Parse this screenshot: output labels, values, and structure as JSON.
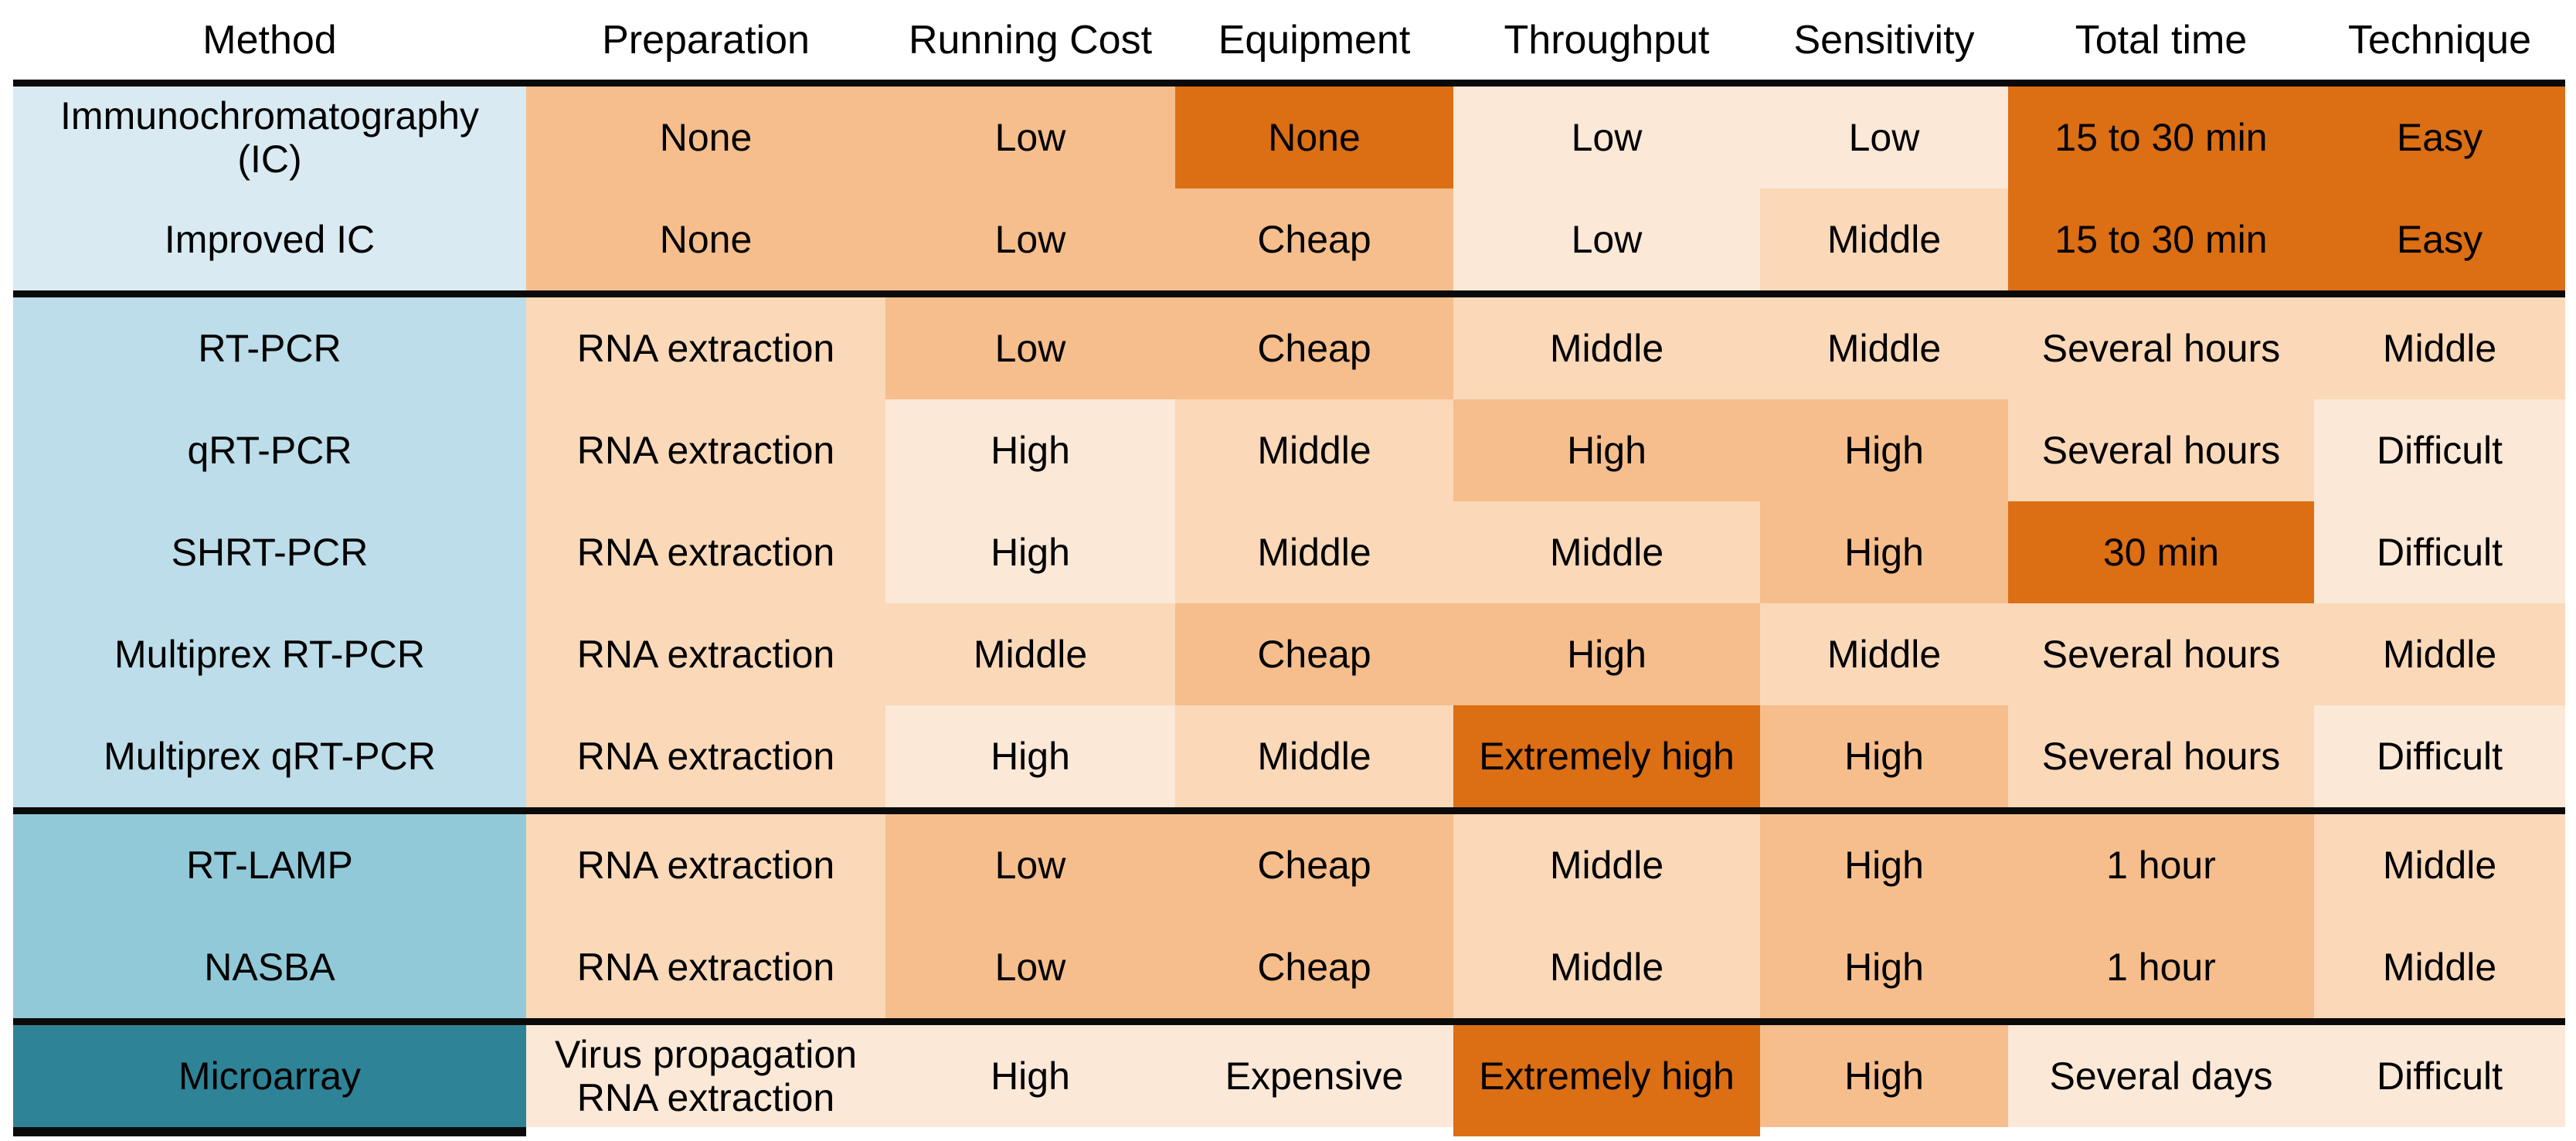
{
  "chart_data": {
    "type": "table",
    "columns": [
      "Method",
      "Preparation",
      "Running Cost",
      "Equipment",
      "Throughput",
      "Sensitivity",
      "Total time",
      "Technique"
    ],
    "palette": {
      "dark": "#DC6E14",
      "medium": "#F6BE8C",
      "peach": "#FAD8B8",
      "cream": "#FBE8D7",
      "blue_lightest": "#D9EAF2",
      "blue_light": "#BCDDE9",
      "blue_medium": "#92C9D9",
      "teal": "#2F8397",
      "rule": "#0A0A0A"
    },
    "groups": [
      {
        "method_color": "blue_lightest",
        "rows": [
          {
            "method_lines": [
              "Immunochromatography",
              "(IC)"
            ],
            "cells": [
              {
                "text": "None",
                "color": "medium"
              },
              {
                "text": "Low",
                "color": "medium"
              },
              {
                "text": "None",
                "color": "dark"
              },
              {
                "text": "Low",
                "color": "cream"
              },
              {
                "text": "Low",
                "color": "cream"
              },
              {
                "text": "15 to 30 min",
                "color": "dark"
              },
              {
                "text": "Easy",
                "color": "dark"
              }
            ]
          },
          {
            "method_lines": [
              "Improved IC"
            ],
            "cells": [
              {
                "text": "None",
                "color": "medium"
              },
              {
                "text": "Low",
                "color": "medium"
              },
              {
                "text": "Cheap",
                "color": "medium"
              },
              {
                "text": "Low",
                "color": "cream"
              },
              {
                "text": "Middle",
                "color": "peach"
              },
              {
                "text": "15 to 30 min",
                "color": "dark"
              },
              {
                "text": "Easy",
                "color": "dark"
              }
            ]
          }
        ]
      },
      {
        "method_color": "blue_light",
        "rows": [
          {
            "method_lines": [
              "RT-PCR"
            ],
            "cells": [
              {
                "text": "RNA extraction",
                "color": "peach"
              },
              {
                "text": "Low",
                "color": "medium"
              },
              {
                "text": "Cheap",
                "color": "medium"
              },
              {
                "text": "Middle",
                "color": "peach"
              },
              {
                "text": "Middle",
                "color": "peach"
              },
              {
                "text": "Several hours",
                "color": "peach"
              },
              {
                "text": "Middle",
                "color": "peach"
              }
            ]
          },
          {
            "method_lines": [
              "qRT-PCR"
            ],
            "cells": [
              {
                "text": "RNA extraction",
                "color": "peach"
              },
              {
                "text": "High",
                "color": "cream"
              },
              {
                "text": "Middle",
                "color": "peach"
              },
              {
                "text": "High",
                "color": "medium"
              },
              {
                "text": "High",
                "color": "medium"
              },
              {
                "text": "Several hours",
                "color": "peach"
              },
              {
                "text": "Difficult",
                "color": "cream"
              }
            ]
          },
          {
            "method_lines": [
              "SHRT-PCR"
            ],
            "cells": [
              {
                "text": "RNA extraction",
                "color": "peach"
              },
              {
                "text": "High",
                "color": "cream"
              },
              {
                "text": "Middle",
                "color": "peach"
              },
              {
                "text": "Middle",
                "color": "peach"
              },
              {
                "text": "High",
                "color": "medium"
              },
              {
                "text": "30 min",
                "color": "dark"
              },
              {
                "text": "Difficult",
                "color": "cream"
              }
            ]
          },
          {
            "method_lines": [
              "Multiprex RT-PCR"
            ],
            "cells": [
              {
                "text": "RNA extraction",
                "color": "peach"
              },
              {
                "text": "Middle",
                "color": "peach"
              },
              {
                "text": "Cheap",
                "color": "medium"
              },
              {
                "text": "High",
                "color": "medium"
              },
              {
                "text": "Middle",
                "color": "peach"
              },
              {
                "text": "Several hours",
                "color": "peach"
              },
              {
                "text": "Middle",
                "color": "peach"
              }
            ]
          },
          {
            "method_lines": [
              "Multiprex qRT-PCR"
            ],
            "cells": [
              {
                "text": "RNA extraction",
                "color": "peach"
              },
              {
                "text": "High",
                "color": "cream"
              },
              {
                "text": "Middle",
                "color": "peach"
              },
              {
                "text": "Extremely high",
                "color": "dark"
              },
              {
                "text": "High",
                "color": "medium"
              },
              {
                "text": "Several hours",
                "color": "peach"
              },
              {
                "text": "Difficult",
                "color": "cream"
              }
            ]
          }
        ]
      },
      {
        "method_color": "blue_medium",
        "rows": [
          {
            "method_lines": [
              "RT-LAMP"
            ],
            "cells": [
              {
                "text": "RNA extraction",
                "color": "peach"
              },
              {
                "text": "Low",
                "color": "medium"
              },
              {
                "text": "Cheap",
                "color": "medium"
              },
              {
                "text": "Middle",
                "color": "peach"
              },
              {
                "text": "High",
                "color": "medium"
              },
              {
                "text": "1 hour",
                "color": "medium"
              },
              {
                "text": "Middle",
                "color": "peach"
              }
            ]
          },
          {
            "method_lines": [
              "NASBA"
            ],
            "cells": [
              {
                "text": "RNA extraction",
                "color": "peach"
              },
              {
                "text": "Low",
                "color": "medium"
              },
              {
                "text": "Cheap",
                "color": "medium"
              },
              {
                "text": "Middle",
                "color": "peach"
              },
              {
                "text": "High",
                "color": "medium"
              },
              {
                "text": "1 hour",
                "color": "medium"
              },
              {
                "text": "Middle",
                "color": "peach"
              }
            ]
          }
        ]
      },
      {
        "method_color": "teal",
        "rows": [
          {
            "method_lines": [
              "Microarray"
            ],
            "cells": [
              {
                "text": "Virus propagation",
                "text2": "RNA extraction",
                "color": "cream"
              },
              {
                "text": "High",
                "color": "cream"
              },
              {
                "text": "Expensive",
                "color": "cream"
              },
              {
                "text": "Extremely high",
                "color": "dark"
              },
              {
                "text": "High",
                "color": "medium"
              },
              {
                "text": "Several days",
                "color": "cream"
              },
              {
                "text": "Difficult",
                "color": "cream"
              }
            ]
          }
        ]
      }
    ]
  }
}
